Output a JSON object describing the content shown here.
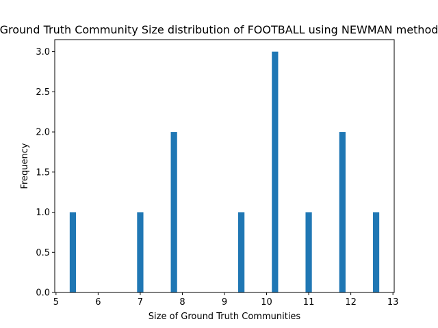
{
  "chart_data": {
    "type": "bar",
    "title": "Ground Truth Community Size distribution of FOOTBALL using NEWMAN method",
    "xlabel": "Size of Ground Truth Communities",
    "ylabel": "Frequency",
    "xlim": [
      4.97,
      13.03
    ],
    "ylim": [
      0,
      3.15
    ],
    "bar_width": 0.15,
    "xticks": [
      5,
      6,
      7,
      8,
      9,
      10,
      11,
      12,
      13
    ],
    "xtick_labels": [
      "5",
      "6",
      "7",
      "8",
      "9",
      "10",
      "11",
      "12",
      "13"
    ],
    "yticks": [
      0.0,
      0.5,
      1.0,
      1.5,
      2.0,
      2.5,
      3.0
    ],
    "ytick_labels": [
      "0.0",
      "0.5",
      "1.0",
      "1.5",
      "2.0",
      "2.5",
      "3.0"
    ],
    "bar_color": "#1f77b4",
    "bars": [
      {
        "x": 5.4,
        "value": 1
      },
      {
        "x": 7.0,
        "value": 1
      },
      {
        "x": 7.8,
        "value": 2
      },
      {
        "x": 9.4,
        "value": 1
      },
      {
        "x": 10.2,
        "value": 3
      },
      {
        "x": 11.0,
        "value": 1
      },
      {
        "x": 11.8,
        "value": 2
      },
      {
        "x": 12.6,
        "value": 1
      }
    ]
  }
}
